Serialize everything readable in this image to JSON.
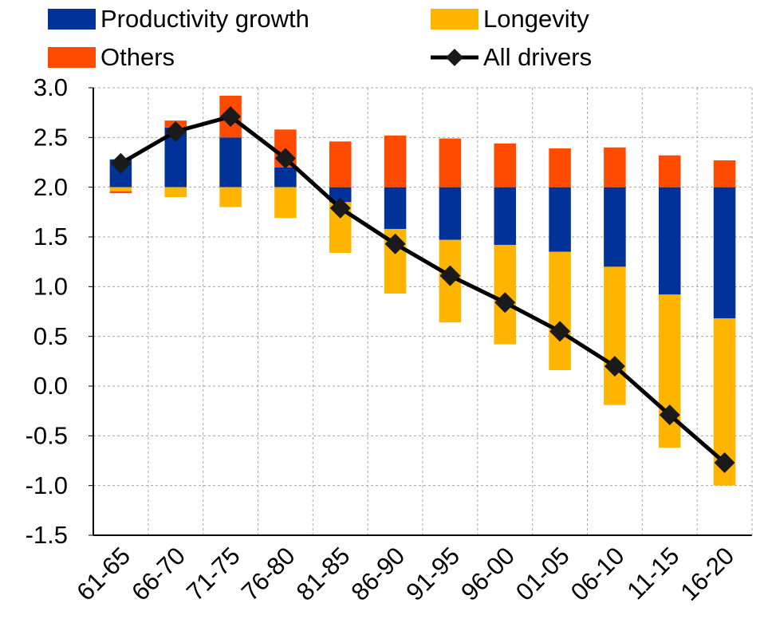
{
  "chart_data": {
    "type": "bar",
    "categories": [
      "61-65",
      "66-70",
      "71-75",
      "76-80",
      "81-85",
      "86-90",
      "91-95",
      "96-00",
      "01-05",
      "06-10",
      "11-15",
      "16-20"
    ],
    "bar_base": 2,
    "series": [
      {
        "name": "Productivity growth",
        "color": "#003299",
        "values": [
          0.28,
          0.6,
          0.5,
          0.2,
          -0.15,
          -0.42,
          -0.53,
          -0.58,
          -0.65,
          -0.8,
          -1.08,
          -1.32
        ]
      },
      {
        "name": "Longevity",
        "color": "#ffb400",
        "values": [
          -0.04,
          -0.1,
          -0.2,
          -0.31,
          -0.51,
          -0.65,
          -0.83,
          -1.0,
          -1.19,
          -1.39,
          -1.54,
          -1.68
        ]
      },
      {
        "name": "Others",
        "color": "#ff4b00",
        "values": [
          -0.02,
          0.07,
          0.42,
          0.38,
          0.46,
          0.52,
          0.49,
          0.44,
          0.39,
          0.4,
          0.32,
          0.27
        ]
      },
      {
        "name": "All drivers",
        "type": "line",
        "color": "#000000",
        "values": [
          2.24,
          2.56,
          2.71,
          2.29,
          1.79,
          1.43,
          1.11,
          0.84,
          0.55,
          0.2,
          -0.29,
          -0.77
        ]
      }
    ],
    "ylim": [
      -1.5,
      3
    ],
    "yticks": [
      {
        "value": 3,
        "label": "3.0"
      },
      2.5,
      {
        "value": 2,
        "label": "2.0"
      },
      1.5,
      {
        "value": 1,
        "label": "1.0"
      },
      0.5,
      {
        "value": 0,
        "label": "0.0"
      },
      -0.5,
      {
        "value": -1,
        "label": "-1.0"
      },
      -1.5
    ],
    "grid": true
  }
}
